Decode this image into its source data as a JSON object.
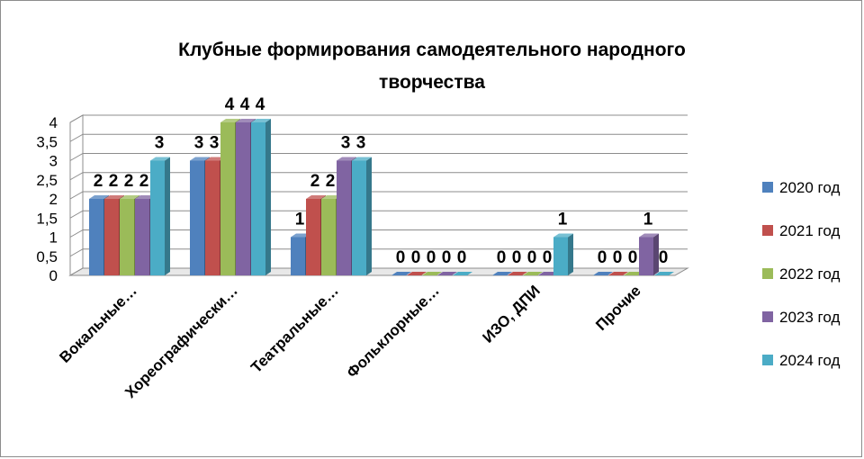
{
  "chart_data": {
    "type": "bar",
    "title_line1": "Клубные формирования самодеятельного народного",
    "title_line2": "творчества",
    "categories": [
      "Вокальные…",
      "Хореографически…",
      "Театральные…",
      "Фольклорные…",
      "ИЗО, ДПИ",
      "Прочие"
    ],
    "series": [
      {
        "name": "2020 год",
        "color": "#4F81BD",
        "values": [
          2,
          3,
          1,
          0,
          0,
          0
        ]
      },
      {
        "name": "2021 год",
        "color": "#C0504D",
        "values": [
          2,
          3,
          2,
          0,
          0,
          0
        ]
      },
      {
        "name": "2022 год",
        "color": "#9BBB59",
        "values": [
          2,
          4,
          2,
          0,
          0,
          0
        ]
      },
      {
        "name": "2023 год",
        "color": "#8064A2",
        "values": [
          2,
          4,
          3,
          0,
          0,
          1
        ]
      },
      {
        "name": "2024 год",
        "color": "#4BACC6",
        "values": [
          3,
          4,
          3,
          0,
          1,
          0
        ]
      }
    ],
    "y_ticks": [
      "0",
      "0,5",
      "1",
      "1,5",
      "2",
      "2,5",
      "3",
      "3,5",
      "4"
    ],
    "ylim": [
      0,
      4
    ],
    "grid": true,
    "legend_position": "right",
    "style": "3d-clustered-column"
  }
}
